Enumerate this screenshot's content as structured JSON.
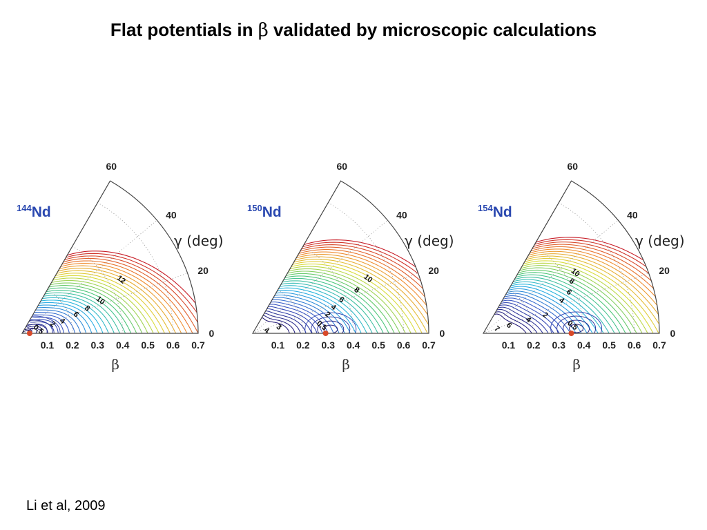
{
  "slide": {
    "title_pre": "Flat potentials in ",
    "title_symbol": "β",
    "title_post": " validated by microscopic calculations",
    "citation": "Li et al, 2009"
  },
  "chart_data": [
    {
      "type": "contour",
      "nucleus_mass": "144",
      "nucleus_symbol": "Nd",
      "xlabel": "β",
      "ylabel": "γ (deg)",
      "beta_ticks": [
        "0.1",
        "0.2",
        "0.3",
        "0.4",
        "0.5",
        "0.6",
        "0.7"
      ],
      "gamma_ticks": [
        "0",
        "20",
        "40",
        "60"
      ],
      "beta_range": [
        0,
        0.7
      ],
      "gamma_range": [
        0,
        60
      ],
      "contour_labels": [
        {
          "text": "0.5",
          "beta": 0.06,
          "gamma": 8
        },
        {
          "text": "2",
          "beta": 0.12,
          "gamma": 14
        },
        {
          "text": "4",
          "beta": 0.16,
          "gamma": 15
        },
        {
          "text": "6",
          "beta": 0.22,
          "gamma": 18
        },
        {
          "text": "8",
          "beta": 0.27,
          "gamma": 20
        },
        {
          "text": "10",
          "beta": 0.33,
          "gamma": 22
        },
        {
          "text": "12",
          "beta": 0.44,
          "gamma": 28
        }
      ],
      "minimum": {
        "beta": 0.03,
        "gamma": 0
      },
      "minimum_color": "#d94a2a"
    },
    {
      "type": "contour",
      "nucleus_mass": "150",
      "nucleus_symbol": "Nd",
      "xlabel": "β",
      "ylabel": "γ (deg)",
      "beta_ticks": [
        "0.1",
        "0.2",
        "0.3",
        "0.4",
        "0.5",
        "0.6",
        "0.7"
      ],
      "gamma_ticks": [
        "0",
        "20",
        "40",
        "60"
      ],
      "beta_range": [
        0,
        0.7
      ],
      "gamma_range": [
        0,
        60
      ],
      "contour_labels": [
        {
          "text": "4",
          "beta": 0.05,
          "gamma": 5
        },
        {
          "text": "3",
          "beta": 0.1,
          "gamma": 10
        },
        {
          "text": "0.5",
          "beta": 0.27,
          "gamma": 5
        },
        {
          "text": "2",
          "beta": 0.3,
          "gamma": 13
        },
        {
          "text": "4",
          "beta": 0.33,
          "gamma": 17
        },
        {
          "text": "6",
          "beta": 0.37,
          "gamma": 20
        },
        {
          "text": "8",
          "beta": 0.44,
          "gamma": 22
        },
        {
          "text": "10",
          "beta": 0.5,
          "gamma": 25
        }
      ],
      "minimum": {
        "beta": 0.29,
        "gamma": 0
      },
      "minimum_color": "#d94a2a"
    },
    {
      "type": "contour",
      "nucleus_mass": "154",
      "nucleus_symbol": "Nd",
      "xlabel": "β",
      "ylabel": "γ (deg)",
      "beta_ticks": [
        "0.1",
        "0.2",
        "0.3",
        "0.4",
        "0.5",
        "0.6",
        "0.7"
      ],
      "gamma_ticks": [
        "0",
        "20",
        "40",
        "60"
      ],
      "beta_range": [
        0,
        0.7
      ],
      "gamma_range": [
        0,
        60
      ],
      "contour_labels": [
        {
          "text": "7",
          "beta": 0.05,
          "gamma": 12
        },
        {
          "text": "6",
          "beta": 0.1,
          "gamma": 14
        },
        {
          "text": "4",
          "beta": 0.18,
          "gamma": 15
        },
        {
          "text": "2",
          "beta": 0.25,
          "gamma": 15
        },
        {
          "text": "0.5",
          "beta": 0.35,
          "gamma": 4
        },
        {
          "text": "4",
          "beta": 0.33,
          "gamma": 22
        },
        {
          "text": "6",
          "beta": 0.37,
          "gamma": 25
        },
        {
          "text": "8",
          "beta": 0.4,
          "gamma": 30
        },
        {
          "text": "10",
          "beta": 0.43,
          "gamma": 33
        }
      ],
      "minimum": {
        "beta": 0.35,
        "gamma": 0
      },
      "minimum_color": "#d94a2a"
    }
  ]
}
